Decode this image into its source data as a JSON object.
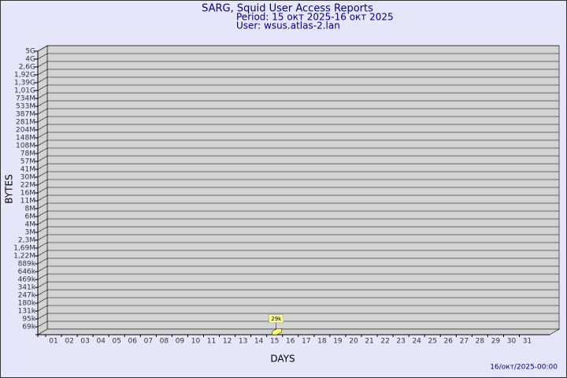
{
  "chart_data": {
    "type": "bar",
    "title": "SARG, Squid User Access Reports",
    "subtitle": "Period: 15 окт 2025-16 окт 2025",
    "user": "User: wsus.atlas-2.lan",
    "y_label": "BYTES",
    "x_label": "DAYS",
    "footer": "16/окт/2025-00:00",
    "categories": [
      "01",
      "02",
      "03",
      "04",
      "05",
      "06",
      "07",
      "08",
      "09",
      "10",
      "11",
      "12",
      "13",
      "14",
      "15",
      "16",
      "17",
      "18",
      "19",
      "20",
      "21",
      "22",
      "23",
      "24",
      "25",
      "26",
      "27",
      "28",
      "29",
      "30",
      "31"
    ],
    "values": [
      null,
      null,
      null,
      null,
      null,
      null,
      null,
      null,
      null,
      null,
      null,
      null,
      null,
      null,
      29000,
      null,
      null,
      null,
      null,
      null,
      null,
      null,
      null,
      null,
      null,
      null,
      null,
      null,
      null,
      null,
      null
    ],
    "value_labels": [
      null,
      null,
      null,
      null,
      null,
      null,
      null,
      null,
      null,
      null,
      null,
      null,
      null,
      null,
      "29k",
      null,
      null,
      null,
      null,
      null,
      null,
      null,
      null,
      null,
      null,
      null,
      null,
      null,
      null,
      null,
      null
    ],
    "color": "#ffff80",
    "ylim": [
      0,
      5000000000
    ],
    "yticks": [
      {
        "value": 69000,
        "label": "69k"
      },
      {
        "value": 95000,
        "label": "95k"
      },
      {
        "value": 131000,
        "label": "131k"
      },
      {
        "value": 180000,
        "label": "180k"
      },
      {
        "value": 247000,
        "label": "247k"
      },
      {
        "value": 341000,
        "label": "341k"
      },
      {
        "value": 469000,
        "label": "469k"
      },
      {
        "value": 646000,
        "label": "646k"
      },
      {
        "value": 889000,
        "label": "889k"
      },
      {
        "value": 1220000,
        "label": "1,22M"
      },
      {
        "value": 1690000,
        "label": "1,69M"
      },
      {
        "value": 2300000,
        "label": "2,3M"
      },
      {
        "value": 3000000,
        "label": "3M"
      },
      {
        "value": 4000000,
        "label": "4M"
      },
      {
        "value": 6000000,
        "label": "6M"
      },
      {
        "value": 8000000,
        "label": "8M"
      },
      {
        "value": 11000000,
        "label": "11M"
      },
      {
        "value": 16000000,
        "label": "16M"
      },
      {
        "value": 22000000,
        "label": "22M"
      },
      {
        "value": 30000000,
        "label": "30M"
      },
      {
        "value": 41000000,
        "label": "41M"
      },
      {
        "value": 57000000,
        "label": "57M"
      },
      {
        "value": 78000000,
        "label": "78M"
      },
      {
        "value": 108000000,
        "label": "108M"
      },
      {
        "value": 148000000,
        "label": "148M"
      },
      {
        "value": 204000000,
        "label": "204M"
      },
      {
        "value": 281000000,
        "label": "281M"
      },
      {
        "value": 387000000,
        "label": "387M"
      },
      {
        "value": 533000000,
        "label": "533M"
      },
      {
        "value": 734000000,
        "label": "734M"
      },
      {
        "value": 1010000000,
        "label": "1,01G"
      },
      {
        "value": 1390000000,
        "label": "1,39G"
      },
      {
        "value": 1920000000,
        "label": "1,92G"
      },
      {
        "value": 2600000000,
        "label": "2,6G"
      },
      {
        "value": 4000000000,
        "label": "4G"
      },
      {
        "value": 5000000000,
        "label": "5G"
      }
    ],
    "grid": true
  }
}
